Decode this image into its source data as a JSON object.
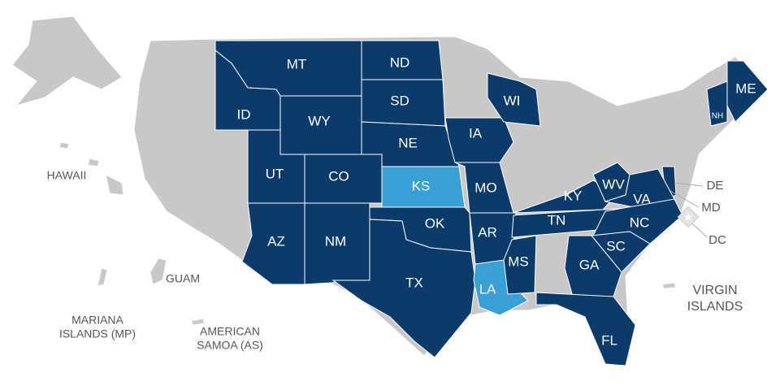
{
  "states": [
    {
      "label": "MT",
      "color": "#0b3a6b"
    },
    {
      "label": "ID",
      "color": "#0b3a6b"
    },
    {
      "label": "WY",
      "color": "#0b3a6b"
    },
    {
      "label": "ND",
      "color": "#0b3a6b"
    },
    {
      "label": "SD",
      "color": "#0b3a6b"
    },
    {
      "label": "NE",
      "color": "#0b3a6b"
    },
    {
      "label": "UT",
      "color": "#0b3a6b"
    },
    {
      "label": "CO",
      "color": "#0b3a6b"
    },
    {
      "label": "KS",
      "color": "#3a9fd5"
    },
    {
      "label": "IA",
      "color": "#0b3a6b"
    },
    {
      "label": "MO",
      "color": "#0b3a6b"
    },
    {
      "label": "AZ",
      "color": "#0b3a6b"
    },
    {
      "label": "NM",
      "color": "#0b3a6b"
    },
    {
      "label": "OK",
      "color": "#0b3a6b"
    },
    {
      "label": "TX",
      "color": "#0b3a6b"
    },
    {
      "label": "AR",
      "color": "#0b3a6b"
    },
    {
      "label": "LA",
      "color": "#3a9fd5"
    },
    {
      "label": "MS",
      "color": "#0b3a6b"
    },
    {
      "label": "WI",
      "color": "#0b3a6b"
    },
    {
      "label": "KY",
      "color": "#0b3a6b"
    },
    {
      "label": "TN",
      "color": "#0b3a6b"
    },
    {
      "label": "WV",
      "color": "#0b3a6b"
    },
    {
      "label": "VA",
      "color": "#0b3a6b"
    },
    {
      "label": "NC",
      "color": "#0b3a6b"
    },
    {
      "label": "SC",
      "color": "#0b3a6b"
    },
    {
      "label": "GA",
      "color": "#0b3a6b"
    },
    {
      "label": "FL",
      "color": "#0b3a6b"
    },
    {
      "label": "ME",
      "color": "#0b3a6b"
    },
    {
      "label": "NH",
      "color": "#0b3a6b"
    }
  ],
  "east_labels": [
    "DE",
    "MD",
    "DC"
  ],
  "territories": [
    {
      "lines": [
        "HAWAII"
      ]
    },
    {
      "lines": [
        "GUAM"
      ]
    },
    {
      "lines": [
        "MARIANA",
        "ISLANDS (MP)"
      ]
    },
    {
      "lines": [
        "AMERICAN",
        "SAMOA (AS)"
      ]
    },
    {
      "lines": [
        "VIRGIN",
        "ISLANDS"
      ]
    }
  ]
}
